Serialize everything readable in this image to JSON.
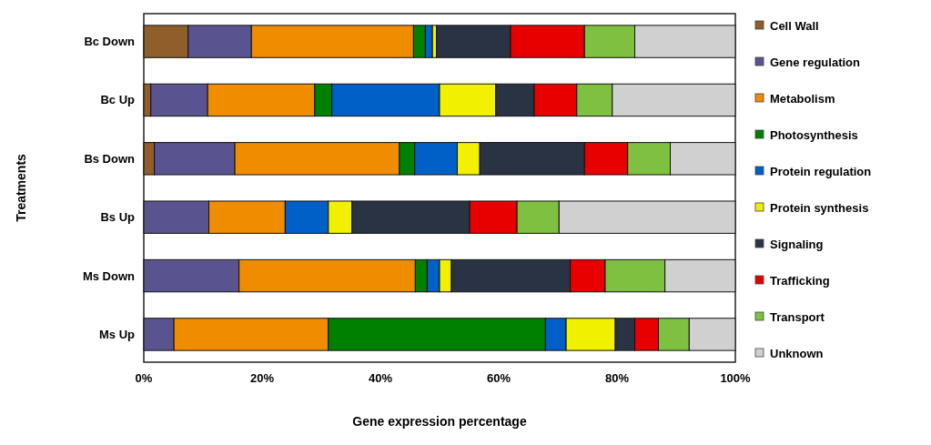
{
  "chart_data": {
    "type": "bar",
    "orientation": "horizontal",
    "stacked": true,
    "xlabel": "Gene expression percentage",
    "ylabel": "Treatments",
    "categories": [
      "Bc Down",
      "Bc Up",
      "Bs Down",
      "Bs Up",
      "Ms Down",
      "Ms Up"
    ],
    "xlim": [
      0,
      100
    ],
    "xticks": [
      {
        "value": 0,
        "label": "0%"
      },
      {
        "value": 20,
        "label": "20%"
      },
      {
        "value": 40,
        "label": "40%"
      },
      {
        "value": 60,
        "label": "60%"
      },
      {
        "value": 80,
        "label": "80%"
      },
      {
        "value": 100,
        "label": "100%"
      }
    ],
    "grid": false,
    "legend": "right",
    "series": [
      {
        "name": "Cell Wall",
        "color": "#8f5e2a",
        "values": [
          7.5,
          1.2,
          1.8,
          0,
          0,
          0
        ]
      },
      {
        "name": "Gene regulation",
        "color": "#595490",
        "values": [
          10.7,
          9.6,
          13.6,
          11.0,
          16.1,
          5.1
        ]
      },
      {
        "name": "Metabolism",
        "color": "#f08c00",
        "values": [
          27.4,
          18.1,
          27.8,
          12.9,
          29.8,
          26.1
        ]
      },
      {
        "name": "Photosynthesis",
        "color": "#008000",
        "values": [
          2.0,
          2.9,
          2.6,
          0,
          2.0,
          36.7
        ]
      },
      {
        "name": "Protein regulation",
        "color": "#0060c8",
        "values": [
          1.2,
          18.2,
          7.2,
          7.3,
          2.1,
          3.5
        ]
      },
      {
        "name": "Protein synthesis",
        "color": "#f0f000",
        "values": [
          0.7,
          9.5,
          3.8,
          4.0,
          2.0,
          8.3
        ]
      },
      {
        "name": "Signaling",
        "color": "#2a3344",
        "values": [
          12.5,
          6.5,
          17.7,
          19.9,
          20.1,
          3.3
        ]
      },
      {
        "name": "Trafficking",
        "color": "#e80000",
        "values": [
          12.5,
          7.2,
          7.3,
          8.0,
          5.9,
          4.0
        ]
      },
      {
        "name": "Transport",
        "color": "#7ec040",
        "values": [
          8.5,
          6.0,
          7.2,
          7.1,
          10.1,
          5.2
        ]
      },
      {
        "name": "Unknown",
        "color": "#d0d0d0",
        "values": [
          17.0,
          20.8,
          11.0,
          29.8,
          11.9,
          7.8
        ]
      }
    ]
  }
}
